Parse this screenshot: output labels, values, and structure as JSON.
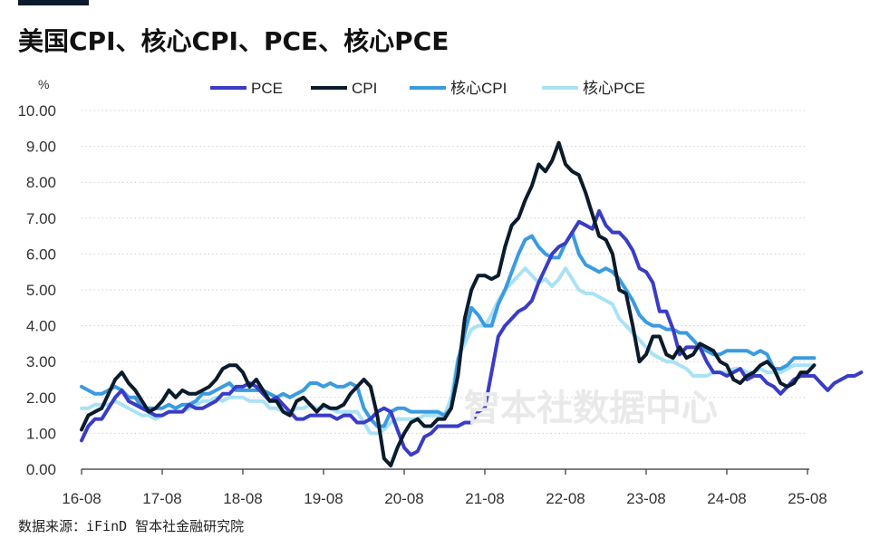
{
  "title": "美国CPI、核心CPI、PCE、核心PCE",
  "source": "数据来源：iFinD 智本社金融研究院",
  "watermark": "智本社数据中心",
  "chart_data": {
    "type": "line",
    "title": "美国CPI、核心CPI、PCE、核心PCE",
    "ylabel": "%",
    "xlabel": "",
    "ylim": [
      0,
      10
    ],
    "yticks": [
      "0.00",
      "1.00",
      "2.00",
      "3.00",
      "4.00",
      "5.00",
      "6.00",
      "7.00",
      "8.00",
      "9.00",
      "10.00"
    ],
    "x_start": "2016-08",
    "x_end": "2025-08",
    "xticks": [
      "16-08",
      "17-08",
      "18-08",
      "19-08",
      "20-08",
      "21-08",
      "22-08",
      "23-08",
      "24-08",
      "25-08"
    ],
    "grid": "horizontal-dotted",
    "legend_position": "top",
    "series": [
      {
        "name": "PCE",
        "color": "#3a3cc7",
        "values": [
          0.8,
          1.2,
          1.4,
          1.4,
          1.7,
          2.0,
          2.2,
          1.9,
          1.8,
          1.7,
          1.6,
          1.5,
          1.5,
          1.6,
          1.6,
          1.6,
          1.8,
          1.7,
          1.7,
          1.8,
          1.9,
          2.1,
          2.1,
          2.3,
          2.3,
          2.4,
          2.3,
          2.1,
          1.9,
          2.0,
          1.8,
          1.6,
          1.4,
          1.4,
          1.5,
          1.5,
          1.5,
          1.5,
          1.4,
          1.5,
          1.5,
          1.3,
          1.3,
          1.4,
          1.6,
          1.7,
          1.6,
          1.1,
          0.6,
          0.4,
          0.5,
          0.9,
          1.0,
          1.2,
          1.2,
          1.2,
          1.2,
          1.3,
          1.3,
          1.6,
          1.7,
          2.7,
          3.7,
          4.0,
          4.2,
          4.4,
          4.5,
          4.7,
          5.2,
          5.6,
          6.0,
          6.2,
          6.3,
          6.6,
          6.9,
          6.8,
          6.7,
          7.2,
          6.8,
          6.6,
          6.6,
          6.4,
          6.1,
          5.6,
          5.5,
          5.2,
          4.4,
          4.4,
          3.9,
          3.2,
          3.4,
          3.4,
          3.4,
          3.0,
          2.7,
          2.7,
          2.6,
          2.7,
          2.8,
          2.5,
          2.6,
          2.6,
          2.4,
          2.3,
          2.1,
          2.3,
          2.5,
          2.6,
          2.6,
          2.6,
          2.4,
          2.2,
          2.4,
          2.5,
          2.6,
          2.6,
          2.7
        ]
      },
      {
        "name": "CPI",
        "color": "#0b1b2b",
        "values": [
          1.1,
          1.5,
          1.6,
          1.7,
          2.1,
          2.5,
          2.7,
          2.4,
          2.2,
          1.9,
          1.6,
          1.7,
          1.9,
          2.2,
          2.0,
          2.2,
          2.1,
          2.1,
          2.2,
          2.3,
          2.5,
          2.8,
          2.9,
          2.9,
          2.7,
          2.3,
          2.5,
          2.2,
          1.9,
          1.9,
          1.6,
          1.5,
          1.9,
          2.0,
          1.8,
          1.6,
          1.8,
          1.7,
          1.7,
          1.8,
          2.1,
          2.3,
          2.5,
          2.3,
          1.5,
          0.3,
          0.1,
          0.6,
          1.0,
          1.3,
          1.4,
          1.2,
          1.2,
          1.4,
          1.4,
          1.7,
          2.6,
          4.2,
          5.0,
          5.4,
          5.4,
          5.3,
          5.4,
          6.2,
          6.8,
          7.0,
          7.5,
          7.9,
          8.5,
          8.3,
          8.6,
          9.1,
          8.5,
          8.3,
          8.2,
          7.7,
          7.1,
          6.5,
          6.4,
          6.0,
          5.0,
          4.9,
          4.0,
          3.0,
          3.2,
          3.7,
          3.7,
          3.2,
          3.1,
          3.4,
          3.1,
          3.2,
          3.5,
          3.4,
          3.3,
          3.0,
          2.9,
          2.5,
          2.4,
          2.6,
          2.7,
          2.9,
          3.0,
          2.8,
          2.4,
          2.3,
          2.4,
          2.7,
          2.7,
          2.9
        ]
      },
      {
        "name": "核心CPI",
        "color": "#3a9be0",
        "values": [
          2.3,
          2.2,
          2.1,
          2.1,
          2.2,
          2.3,
          2.2,
          2.0,
          2.0,
          1.7,
          1.7,
          1.7,
          1.7,
          1.8,
          1.7,
          1.8,
          1.8,
          1.9,
          2.1,
          2.1,
          2.2,
          2.3,
          2.4,
          2.2,
          2.2,
          2.2,
          2.2,
          2.2,
          2.1,
          2.0,
          2.1,
          2.0,
          2.1,
          2.2,
          2.4,
          2.4,
          2.3,
          2.4,
          2.3,
          2.3,
          2.4,
          2.3,
          1.7,
          1.4,
          1.2,
          1.2,
          1.6,
          1.7,
          1.7,
          1.6,
          1.6,
          1.6,
          1.6,
          1.6,
          1.5,
          1.7,
          3.0,
          3.8,
          4.5,
          4.3,
          4.0,
          4.0,
          4.6,
          5.0,
          5.5,
          6.0,
          6.4,
          6.5,
          6.2,
          6.0,
          5.9,
          5.9,
          6.3,
          6.6,
          6.0,
          5.7,
          5.6,
          5.5,
          5.6,
          5.5,
          5.3,
          5.0,
          4.7,
          4.3,
          4.1,
          4.0,
          4.0,
          3.9,
          3.9,
          3.8,
          3.8,
          3.6,
          3.4,
          3.3,
          3.2,
          3.2,
          3.3,
          3.3,
          3.3,
          3.3,
          3.2,
          3.3,
          3.2,
          2.8,
          2.8,
          2.9,
          3.1,
          3.1,
          3.1,
          3.1
        ]
      },
      {
        "name": "核心PCE",
        "color": "#a9e2f5",
        "values": [
          1.7,
          1.7,
          1.8,
          1.8,
          1.8,
          1.9,
          1.8,
          1.7,
          1.6,
          1.5,
          1.5,
          1.4,
          1.5,
          1.6,
          1.6,
          1.6,
          1.7,
          1.8,
          1.9,
          1.9,
          2.0,
          1.9,
          2.0,
          2.0,
          2.0,
          1.9,
          1.9,
          1.9,
          1.7,
          1.7,
          1.6,
          1.6,
          1.7,
          1.7,
          1.8,
          1.7,
          1.7,
          1.7,
          1.6,
          1.6,
          1.6,
          1.6,
          1.3,
          1.0,
          1.0,
          1.1,
          1.3,
          1.4,
          1.4,
          1.4,
          1.4,
          1.5,
          1.5,
          1.5,
          1.5,
          2.0,
          3.1,
          3.5,
          3.9,
          4.0,
          4.0,
          4.3,
          4.7,
          5.0,
          5.2,
          5.4,
          5.6,
          5.4,
          5.2,
          5.3,
          5.1,
          5.3,
          5.6,
          5.3,
          5.0,
          4.9,
          4.9,
          4.8,
          4.7,
          4.6,
          4.2,
          4.0,
          3.8,
          3.6,
          3.4,
          3.2,
          3.1,
          3.0,
          3.0,
          2.9,
          2.8,
          2.6,
          2.6,
          2.6,
          2.7,
          2.7,
          2.7,
          2.8,
          2.8,
          2.7,
          2.7,
          2.8,
          2.7,
          2.7,
          2.7,
          2.8,
          2.9,
          2.9,
          2.9,
          2.9
        ]
      }
    ]
  }
}
